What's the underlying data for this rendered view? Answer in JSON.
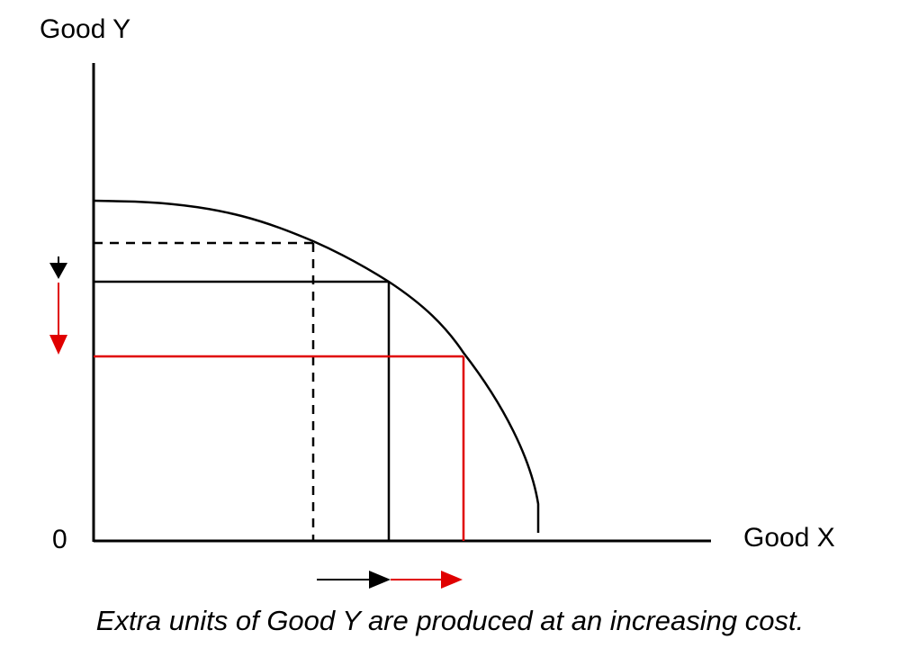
{
  "diagram": {
    "y_axis_label": "Good Y",
    "x_axis_label": "Good X",
    "origin_label": "0",
    "caption": "Extra units of Good Y are produced at an increasing cost.",
    "colors": {
      "axes": "#000000",
      "curve": "#000000",
      "initial_point_lines": "#000000",
      "second_point_lines": "#000000",
      "third_point_lines": "#e00000",
      "arrow_black": "#000000",
      "arrow_red": "#e00000"
    },
    "elements": {
      "curve": "production possibility frontier (concave)",
      "point_1_lines": "dashed",
      "point_2_lines": "solid black",
      "point_3_lines": "solid red",
      "y_arrows": [
        "down-arrow-black",
        "down-arrow-red"
      ],
      "x_arrows": [
        "right-arrow-black",
        "right-arrow-red"
      ]
    }
  }
}
